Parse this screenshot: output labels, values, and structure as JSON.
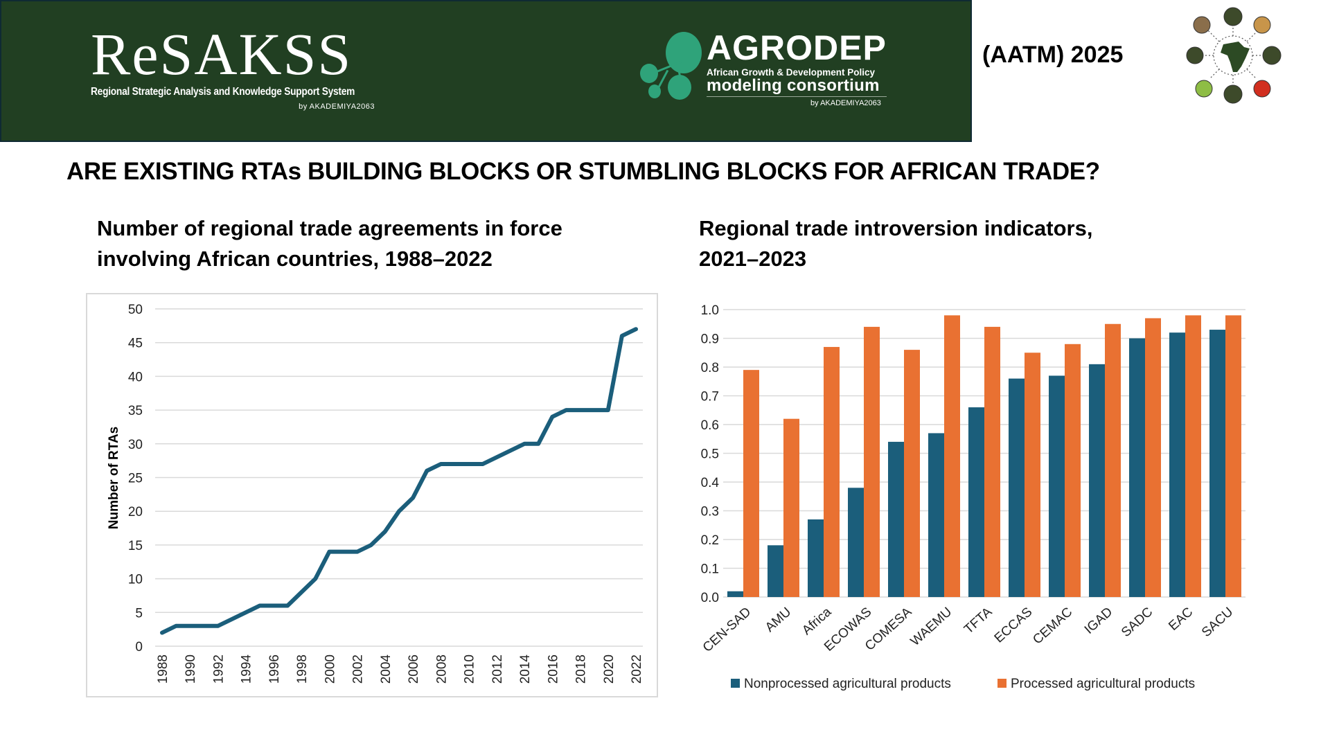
{
  "header": {
    "resakss": {
      "name": "ReSAKSS",
      "subtitle": "Regional Strategic Analysis and Knowledge Support System",
      "byline": "by AKADEMIYA2063"
    },
    "agrodep": {
      "name": "AGRODEP",
      "line1": "African Growth & Development Policy",
      "line2": "modeling consortium",
      "byline": "by AKADEMIYA2063"
    },
    "event_label": "(AATM) 2025",
    "emblem_icon": "africa-emblem-icon",
    "colors": {
      "band": "#213f22",
      "agrodep_accent": "#2fa37a"
    }
  },
  "page": {
    "title": "ARE EXISTING RTAs BUILDING BLOCKS OR STUMBLING BLOCKS FOR AFRICAN TRADE?"
  },
  "chart_data": [
    {
      "type": "line",
      "title_lines": [
        "Number of regional trade agreements in force",
        "involving African countries, 1988–2022"
      ],
      "xlabel": "",
      "ylabel": "Number of  RTAs",
      "ylim": [
        0,
        50
      ],
      "yticks": [
        0,
        5,
        10,
        15,
        20,
        25,
        30,
        35,
        40,
        45,
        50
      ],
      "xticks": [
        "1988",
        "1990",
        "1992",
        "1994",
        "1996",
        "1998",
        "2000",
        "2002",
        "2004",
        "2006",
        "2008",
        "2010",
        "2012",
        "2014",
        "2016",
        "2018",
        "2020",
        "2022"
      ],
      "grid": true,
      "color": "#1b5e7b",
      "x": [
        1988,
        1989,
        1990,
        1991,
        1992,
        1993,
        1994,
        1995,
        1996,
        1997,
        1998,
        1999,
        2000,
        2001,
        2002,
        2003,
        2004,
        2005,
        2006,
        2007,
        2008,
        2009,
        2010,
        2011,
        2012,
        2013,
        2014,
        2015,
        2016,
        2017,
        2018,
        2019,
        2020,
        2021,
        2022
      ],
      "series": [
        {
          "name": "Number of RTAs",
          "values": [
            2,
            3,
            3,
            3,
            3,
            4,
            5,
            6,
            6,
            6,
            8,
            10,
            14,
            14,
            14,
            15,
            17,
            20,
            22,
            26,
            27,
            27,
            27,
            27,
            28,
            29,
            30,
            30,
            34,
            35,
            35,
            35,
            35,
            46,
            47
          ]
        }
      ]
    },
    {
      "type": "bar",
      "title_lines": [
        "Regional trade introversion indicators,",
        "2021–2023"
      ],
      "xlabel": "",
      "ylabel": "",
      "ylim": [
        0,
        1.0
      ],
      "yticks": [
        "0.0",
        "0.1",
        "0.2",
        "0.3",
        "0.4",
        "0.5",
        "0.6",
        "0.7",
        "0.8",
        "0.9",
        "1.0"
      ],
      "grid": true,
      "legend_position": "bottom",
      "categories": [
        "CEN-SAD",
        "AMU",
        "Africa",
        "ECOWAS",
        "COMESA",
        "WAEMU",
        "TFTA",
        "ECCAS",
        "CEMAC",
        "IGAD",
        "SADC",
        "EAC",
        "SACU"
      ],
      "series": [
        {
          "name": "Nonprocessed agricultural products",
          "color": "#1b5e7b",
          "values": [
            0.02,
            0.18,
            0.27,
            0.38,
            0.54,
            0.57,
            0.66,
            0.76,
            0.77,
            0.81,
            0.9,
            0.92,
            0.93
          ]
        },
        {
          "name": "Processed agricultural products",
          "color": "#e97132",
          "values": [
            0.79,
            0.62,
            0.87,
            0.94,
            0.86,
            0.98,
            0.94,
            0.85,
            0.88,
            0.95,
            0.97,
            0.98,
            0.98
          ]
        }
      ]
    }
  ]
}
